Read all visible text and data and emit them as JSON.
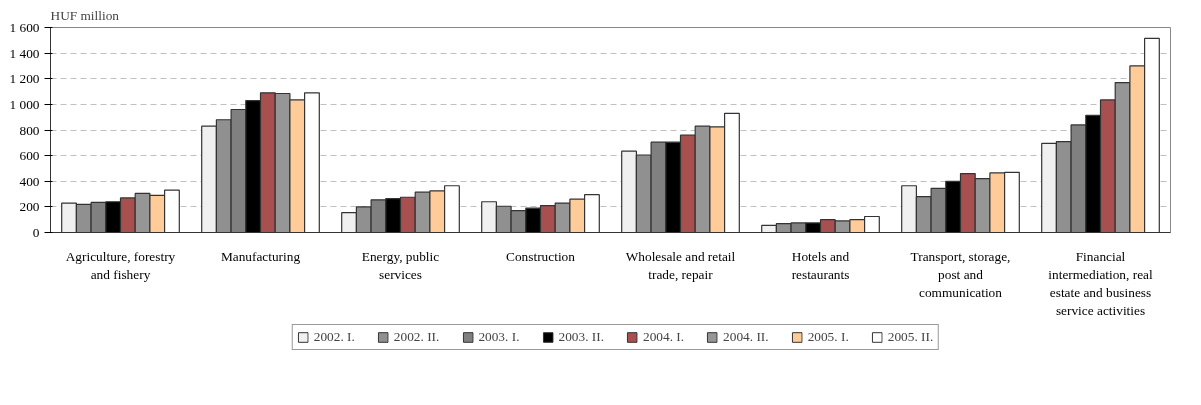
{
  "chart_data": {
    "type": "bar",
    "ylabel": "HUF million",
    "categories": [
      "Agriculture, forestry and fishery",
      "Manufacturing",
      "Energy, public services",
      "Construction",
      "Wholesale and retail trade, repair",
      "Hotels and restaurants",
      "Transport, storage, post and communication",
      "Financial intermediation, real estate and business service activities"
    ],
    "series": [
      {
        "name": "2002. I.",
        "color": "#f0f0f0",
        "values": [
          230,
          830,
          155,
          240,
          635,
          55,
          365,
          695
        ]
      },
      {
        "name": "2002. II.",
        "color": "#909090",
        "values": [
          220,
          880,
          200,
          205,
          605,
          70,
          280,
          710
        ]
      },
      {
        "name": "2003. I.",
        "color": "#808080",
        "values": [
          235,
          960,
          255,
          170,
          705,
          75,
          345,
          840
        ]
      },
      {
        "name": "2003. II.",
        "color": "#000000",
        "values": [
          240,
          1030,
          265,
          190,
          705,
          75,
          400,
          915
        ]
      },
      {
        "name": "2004. I.",
        "color": "#a85050",
        "values": [
          270,
          1090,
          275,
          210,
          760,
          100,
          460,
          1035
        ]
      },
      {
        "name": "2004. II.",
        "color": "#969696",
        "values": [
          305,
          1085,
          315,
          230,
          830,
          90,
          420,
          1170
        ]
      },
      {
        "name": "2005. I.",
        "color": "#ffcc99",
        "values": [
          290,
          1035,
          325,
          260,
          825,
          100,
          465,
          1300
        ]
      },
      {
        "name": "2005. II.",
        "color": "#ffffff",
        "values": [
          330,
          1090,
          365,
          295,
          930,
          125,
          470,
          1515
        ]
      }
    ],
    "ylim": [
      0,
      1600
    ],
    "yticks": [
      0,
      200,
      400,
      600,
      800,
      {
        "value": 1000,
        "label": "1 000"
      },
      {
        "value": 1200,
        "label": "1 200"
      },
      {
        "value": 1400,
        "label": "1 400"
      },
      {
        "value": 1600,
        "label": "1 600"
      }
    ],
    "grid": "y",
    "legend": "bottom"
  }
}
